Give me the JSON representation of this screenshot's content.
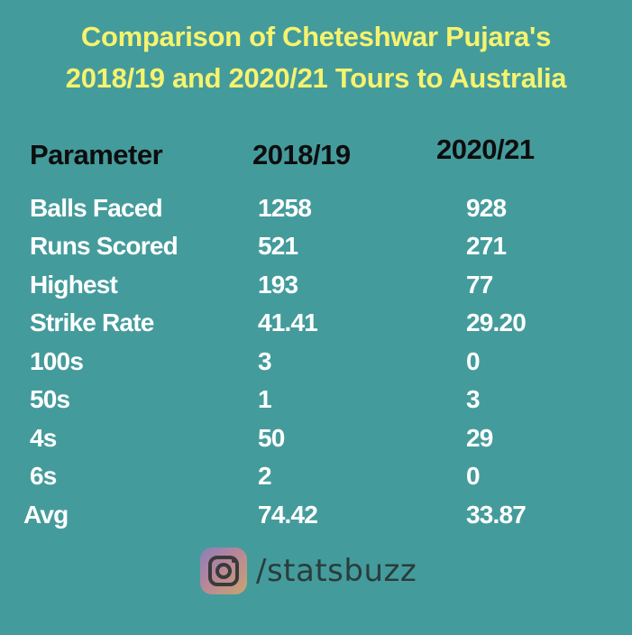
{
  "title_line1": "Comparison of Cheteshwar Pujara's",
  "title_line2": "2018/19 and 2020/21 Tours to Australia",
  "headers": {
    "parameter": "Parameter",
    "col1": "2018/19",
    "col2": "2020/21"
  },
  "rows": [
    {
      "param": "Balls Faced",
      "v1": "1258",
      "v2": "928"
    },
    {
      "param": "Runs Scored",
      "v1": "521",
      "v2": "271"
    },
    {
      "param": "Highest",
      "v1": "193",
      "v2": "77"
    },
    {
      "param": "Strike Rate",
      "v1": "41.41",
      "v2": "29.20"
    },
    {
      "param": "100s",
      "v1": "3",
      "v2": "0"
    },
    {
      "param": "50s",
      "v1": "1",
      "v2": "3"
    },
    {
      "param": "4s",
      "v1": "50",
      "v2": "29"
    },
    {
      "param": "6s",
      "v1": "2",
      "v2": "0"
    },
    {
      "param": "Avg",
      "v1": "74.42",
      "v2": "33.87"
    }
  ],
  "footer": {
    "icon": "instagram-icon",
    "handle": "/statsbuzz"
  },
  "colors": {
    "background": "#449b9c",
    "title": "#f6f36e",
    "header_text": "#0d0d0d",
    "cell_text": "#ffffff"
  }
}
